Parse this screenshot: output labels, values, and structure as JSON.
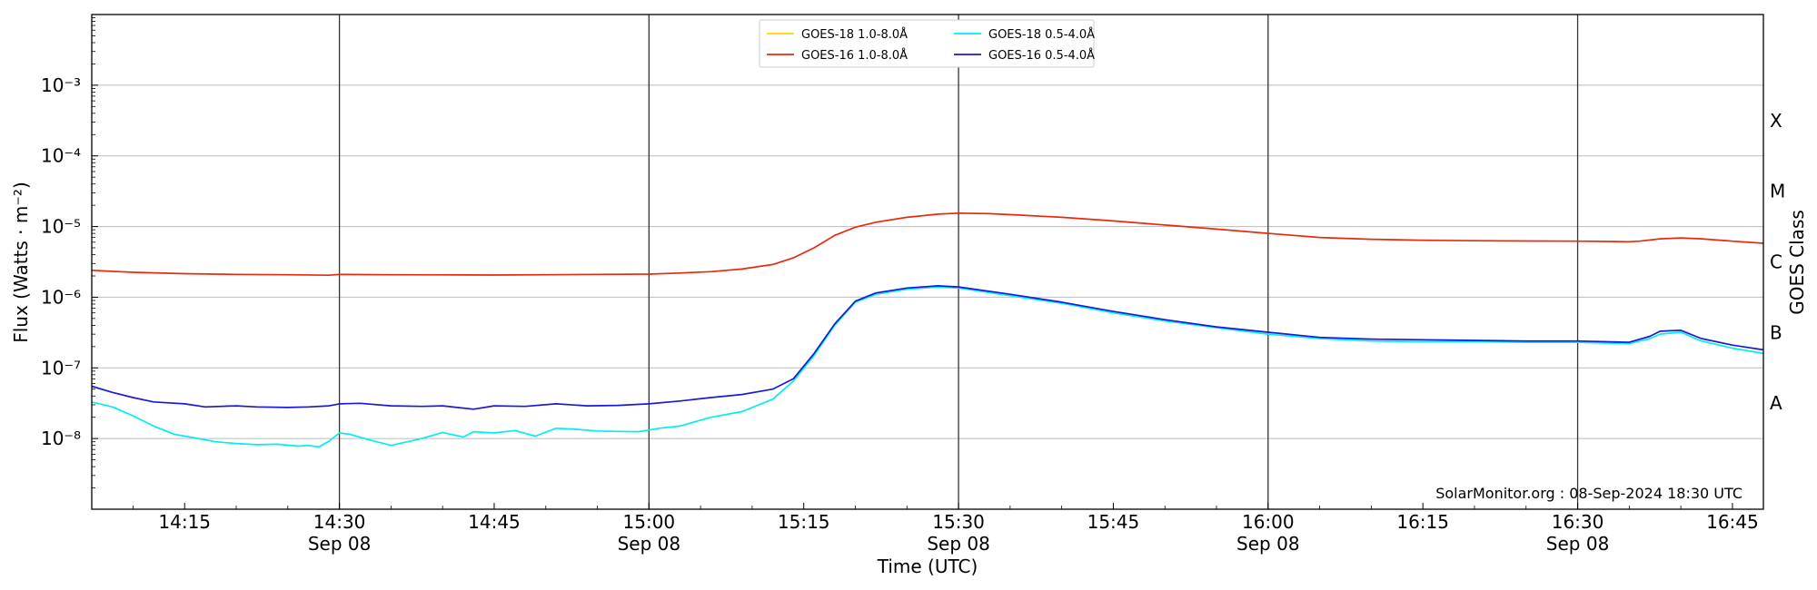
{
  "chart_data": {
    "type": "line",
    "xlabel": "Time (UTC)",
    "ylabel": "Flux (Watts · m⁻²)",
    "ylabel_right": "GOES Class",
    "x_range": [
      "14:06",
      "16:48"
    ],
    "y_range": [
      1e-09,
      0.01
    ],
    "y_scale": "log",
    "grid": "horizontal",
    "legend": "top-center",
    "y_ticks": [
      {
        "value": 1e-08,
        "label": "10⁻⁸"
      },
      {
        "value": 1e-07,
        "label": "10⁻⁷"
      },
      {
        "value": 1e-06,
        "label": "10⁻⁶"
      },
      {
        "value": 1e-05,
        "label": "10⁻⁵"
      },
      {
        "value": 0.0001,
        "label": "10⁻⁴"
      },
      {
        "value": 0.001,
        "label": "10⁻³"
      }
    ],
    "goes_classes": [
      {
        "label": "A",
        "value": 3.16e-08
      },
      {
        "label": "B",
        "value": 3.16e-07
      },
      {
        "label": "C",
        "value": 3.16e-06
      },
      {
        "label": "M",
        "value": 3.16e-05
      },
      {
        "label": "X",
        "value": 0.000316
      }
    ],
    "x_ticks": [
      {
        "time": "14:15",
        "label": "14:15",
        "date": ""
      },
      {
        "time": "14:30",
        "label": "14:30",
        "date": "Sep 08"
      },
      {
        "time": "14:45",
        "label": "14:45",
        "date": ""
      },
      {
        "time": "15:00",
        "label": "15:00",
        "date": "Sep 08"
      },
      {
        "time": "15:15",
        "label": "15:15",
        "date": ""
      },
      {
        "time": "15:30",
        "label": "15:30",
        "date": "Sep 08"
      },
      {
        "time": "15:45",
        "label": "15:45",
        "date": ""
      },
      {
        "time": "16:00",
        "label": "16:00",
        "date": "Sep 08"
      },
      {
        "time": "16:15",
        "label": "16:15",
        "date": ""
      },
      {
        "time": "16:30",
        "label": "16:30",
        "date": "Sep 08"
      },
      {
        "time": "16:45",
        "label": "16:45",
        "date": ""
      }
    ],
    "vertical_lines": [
      "14:30",
      "15:00",
      "15:30",
      "16:00",
      "16:30"
    ],
    "series": [
      {
        "name": "GOES-18 1.0-8.0Å",
        "color": "#ffd700",
        "x": [],
        "y": []
      },
      {
        "name": "GOES-16 1.0-8.0Å",
        "color": "#e8290b",
        "x": [
          "14:06",
          "14:10",
          "14:15",
          "14:20",
          "14:25",
          "14:29",
          "14:30",
          "14:35",
          "14:40",
          "14:45",
          "14:50",
          "14:55",
          "15:00",
          "15:03",
          "15:06",
          "15:09",
          "15:12",
          "15:14",
          "15:16",
          "15:18",
          "15:20",
          "15:22",
          "15:25",
          "15:28",
          "15:30",
          "15:33",
          "15:36",
          "15:40",
          "15:45",
          "15:50",
          "15:55",
          "16:00",
          "16:05",
          "16:10",
          "16:15",
          "16:20",
          "16:25",
          "16:30",
          "16:35",
          "16:36",
          "16:38",
          "16:40",
          "16:42",
          "16:45",
          "16:48"
        ],
        "y": [
          2.4e-06,
          2.25e-06,
          2.15e-06,
          2.1e-06,
          2.08e-06,
          2.05e-06,
          2.1e-06,
          2.08e-06,
          2.07e-06,
          2.06e-06,
          2.08e-06,
          2.1e-06,
          2.12e-06,
          2.2e-06,
          2.3e-06,
          2.5e-06,
          2.9e-06,
          3.6e-06,
          5e-06,
          7.5e-06,
          9.8e-06,
          1.15e-05,
          1.35e-05,
          1.5e-05,
          1.55e-05,
          1.52e-05,
          1.45e-05,
          1.35e-05,
          1.2e-05,
          1.05e-05,
          9.2e-06,
          8e-06,
          7e-06,
          6.6e-06,
          6.4e-06,
          6.3e-06,
          6.25e-06,
          6.2e-06,
          6.1e-06,
          6.2e-06,
          6.7e-06,
          6.9e-06,
          6.7e-06,
          6.2e-06,
          5.8e-06
        ]
      },
      {
        "name": "GOES-18 0.5-4.0Å",
        "color": "#00eeee",
        "x": [
          "14:06",
          "14:08",
          "14:10",
          "14:12",
          "14:14",
          "14:16",
          "14:18",
          "14:20",
          "14:22",
          "14:24",
          "14:26",
          "14:27",
          "14:28",
          "14:29",
          "14:30",
          "14:31",
          "14:33",
          "14:35",
          "14:36",
          "14:38",
          "14:40",
          "14:42",
          "14:43",
          "14:45",
          "14:47",
          "14:49",
          "14:51",
          "14:53",
          "14:55",
          "14:57",
          "14:59",
          "15:01",
          "15:03",
          "15:06",
          "15:09",
          "15:12",
          "15:14",
          "15:16",
          "15:18",
          "15:20",
          "15:22",
          "15:25",
          "15:28",
          "15:30",
          "15:35",
          "15:40",
          "15:45",
          "15:50",
          "15:55",
          "16:00",
          "16:05",
          "16:10",
          "16:15",
          "16:20",
          "16:25",
          "16:30",
          "16:35",
          "16:37",
          "16:38",
          "16:40",
          "16:42",
          "16:45",
          "16:48"
        ],
        "y": [
          3.3e-08,
          2.8e-08,
          2.1e-08,
          1.5e-08,
          1.15e-08,
          1.02e-08,
          9e-09,
          8.5e-09,
          8.2e-09,
          8.3e-09,
          7.8e-09,
          8e-09,
          7.6e-09,
          9.2e-09,
          1.2e-08,
          1.15e-08,
          9.5e-09,
          8e-09,
          8.6e-09,
          1e-08,
          1.22e-08,
          1.05e-08,
          1.25e-08,
          1.2e-08,
          1.3e-08,
          1.08e-08,
          1.4e-08,
          1.35e-08,
          1.28e-08,
          1.26e-08,
          1.25e-08,
          1.4e-08,
          1.5e-08,
          2e-08,
          2.4e-08,
          3.6e-08,
          6.5e-08,
          1.5e-07,
          4e-07,
          8.5e-07,
          1.1e-06,
          1.3e-06,
          1.4e-06,
          1.35e-06,
          1.05e-06,
          8.2e-07,
          6e-07,
          4.6e-07,
          3.7e-07,
          3e-07,
          2.6e-07,
          2.4e-07,
          2.35e-07,
          2.35e-07,
          2.3e-07,
          2.3e-07,
          2.2e-07,
          2.6e-07,
          3e-07,
          3.2e-07,
          2.4e-07,
          1.9e-07,
          1.6e-07
        ]
      },
      {
        "name": "GOES-16 0.5-4.0Å",
        "color": "#1a1ad6",
        "x": [
          "14:06",
          "14:08",
          "14:10",
          "14:12",
          "14:15",
          "14:17",
          "14:20",
          "14:22",
          "14:25",
          "14:27",
          "14:29",
          "14:30",
          "14:32",
          "14:35",
          "14:38",
          "14:40",
          "14:43",
          "14:45",
          "14:48",
          "14:51",
          "14:54",
          "14:57",
          "15:00",
          "15:03",
          "15:06",
          "15:09",
          "15:12",
          "15:14",
          "15:16",
          "15:18",
          "15:20",
          "15:22",
          "15:25",
          "15:28",
          "15:30",
          "15:35",
          "15:40",
          "15:45",
          "15:50",
          "15:55",
          "16:00",
          "16:05",
          "16:10",
          "16:15",
          "16:20",
          "16:25",
          "16:30",
          "16:35",
          "16:37",
          "16:38",
          "16:40",
          "16:42",
          "16:45",
          "16:48"
        ],
        "y": [
          5.5e-08,
          4.5e-08,
          3.8e-08,
          3.3e-08,
          3.1e-08,
          2.8e-08,
          2.9e-08,
          2.8e-08,
          2.75e-08,
          2.8e-08,
          2.9e-08,
          3.1e-08,
          3.15e-08,
          2.9e-08,
          2.85e-08,
          2.9e-08,
          2.6e-08,
          2.9e-08,
          2.85e-08,
          3.1e-08,
          2.9e-08,
          2.95e-08,
          3.1e-08,
          3.4e-08,
          3.8e-08,
          4.2e-08,
          5e-08,
          7e-08,
          1.6e-07,
          4.2e-07,
          8.8e-07,
          1.15e-06,
          1.35e-06,
          1.45e-06,
          1.4e-06,
          1.1e-06,
          8.5e-07,
          6.3e-07,
          4.8e-07,
          3.8e-07,
          3.2e-07,
          2.7e-07,
          2.55e-07,
          2.5e-07,
          2.45e-07,
          2.4e-07,
          2.4e-07,
          2.3e-07,
          2.8e-07,
          3.3e-07,
          3.4e-07,
          2.6e-07,
          2.1e-07,
          1.8e-07
        ]
      }
    ]
  },
  "footer": {
    "credit": "SolarMonitor.org : 08-Sep-2024 18:30 UTC"
  }
}
